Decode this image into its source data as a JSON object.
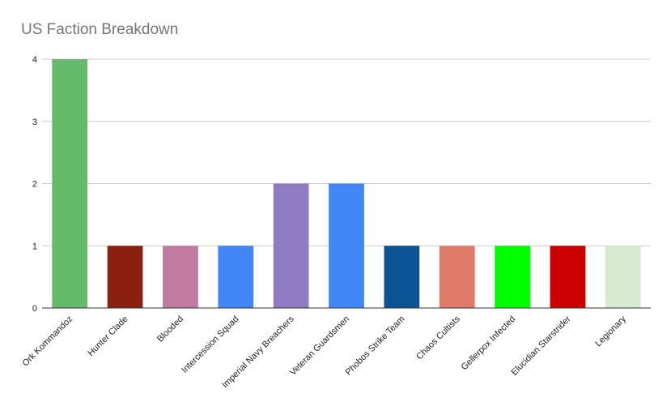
{
  "chart_data": {
    "type": "bar",
    "title": "US Faction Breakdown",
    "xlabel": "",
    "ylabel": "",
    "ylim": [
      0,
      4
    ],
    "yticks": [
      0,
      1,
      2,
      3,
      4
    ],
    "grid": true,
    "legend": "none",
    "categories": [
      "Ork Kommandoz",
      "Hunter Clade",
      "Blooded",
      "Intercession Squad",
      "Imperial Navy Breachers",
      "Veteran Guardsmen",
      "Phobos Strike Team",
      "Chaos Cultists",
      "Gellerpox Infected",
      "Elucidian Starstrider",
      "Legionary"
    ],
    "values": [
      4,
      1,
      1,
      1,
      2,
      2,
      1,
      1,
      1,
      1,
      1
    ],
    "colors": [
      "#66bb6a",
      "#8b2010",
      "#c27ba0",
      "#4285f4",
      "#8e7cc3",
      "#4285f4",
      "#0b5394",
      "#e07b6a",
      "#00ff00",
      "#cc0000",
      "#d9ead3"
    ]
  }
}
